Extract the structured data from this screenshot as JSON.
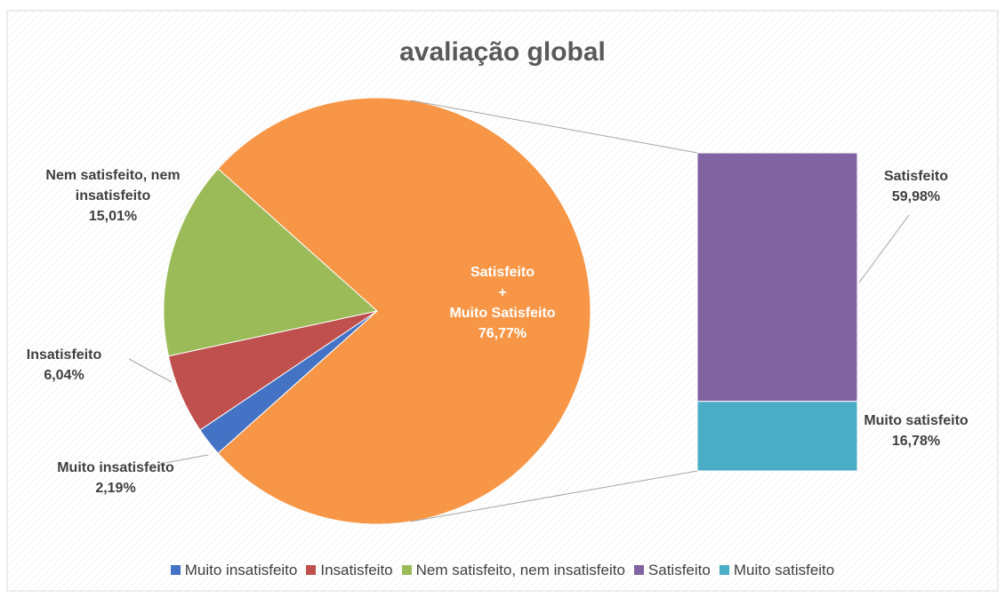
{
  "chart_data": {
    "type": "pie-of-bar",
    "title": "avaliação global",
    "categories": [
      "Muito insatisfeito",
      "Insatisfeito",
      "Nem satisfeito, nem insatisfeito",
      "Satisfeito",
      "Muito satisfeito"
    ],
    "values": [
      2.19,
      6.04,
      15.01,
      59.98,
      16.78
    ],
    "value_labels": [
      "2,19%",
      "6,04%",
      "15,01%",
      "59,98%",
      "16,78%"
    ],
    "colors": [
      "#4472c4",
      "#c0504d",
      "#9bbb59",
      "#8064a2",
      "#4bacc6"
    ],
    "secondary_count": 2,
    "other_label_lines": [
      "Satisfeito",
      "+",
      "Muito Satisfeito"
    ],
    "other_value": 76.77,
    "other_value_label": "76,77%",
    "other_color": "#f79646",
    "legend": "bottom"
  }
}
